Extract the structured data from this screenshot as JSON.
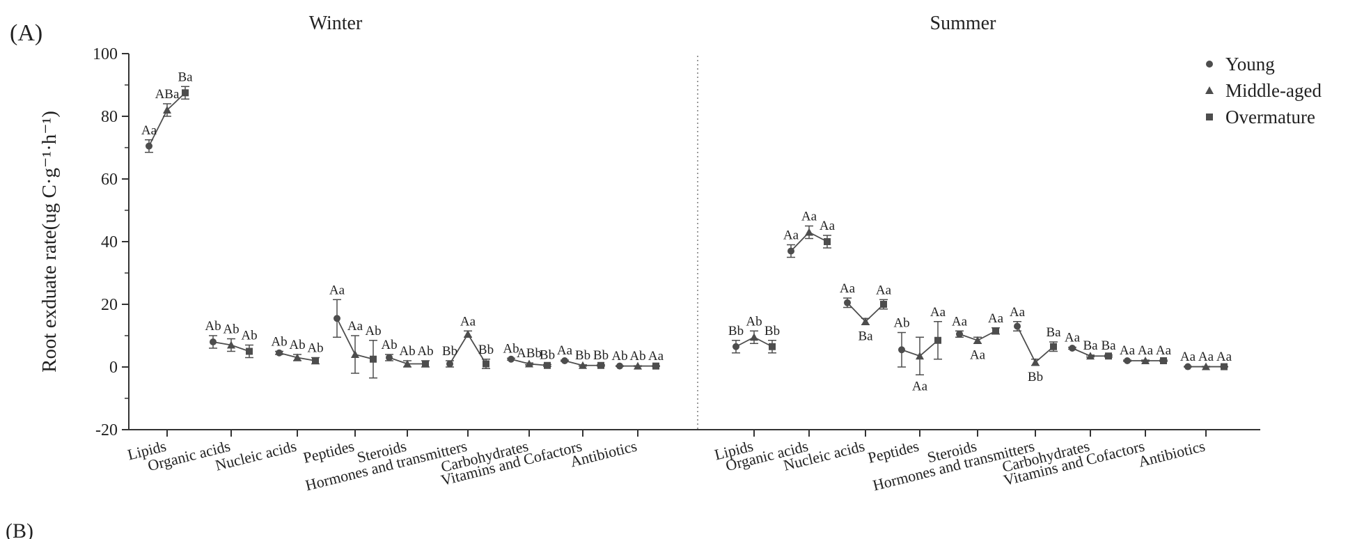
{
  "panel_label": "(A)",
  "panel_label_next": "(B)",
  "chart_data": {
    "type": "scatter",
    "ylabel": "Root exduate rate(ug C·g⁻¹·h⁻¹)",
    "ylim": [
      -20,
      100
    ],
    "yticks": [
      -20,
      0,
      20,
      40,
      60,
      80,
      100
    ],
    "categories": [
      "Lipids",
      "Organic acids",
      "Nucleic acids",
      "Peptides",
      "Steroids",
      "Hormones and transmitters",
      "Carbohydrates",
      "Vitamins and Cofactors",
      "Antibiotics"
    ],
    "legend": {
      "position": "top-right",
      "entries": [
        {
          "name": "Young",
          "marker": "circle"
        },
        {
          "name": "Middle-aged",
          "marker": "triangle"
        },
        {
          "name": "Overmature",
          "marker": "square"
        }
      ]
    },
    "line_color": "#4d4d4d",
    "divider": "dotted vertical line between seasons",
    "panels": [
      {
        "season": "Winter",
        "groups": [
          {
            "category": "Lipids",
            "values": [
              70.5,
              82.0,
              87.5
            ],
            "errors": [
              2.0,
              2.0,
              2.0
            ],
            "labels": [
              "Aa",
              "ABa",
              "Ba"
            ]
          },
          {
            "category": "Organic acids",
            "values": [
              8.0,
              7.0,
              5.0
            ],
            "errors": [
              2.0,
              2.0,
              2.0
            ],
            "labels": [
              "Ab",
              "Ab",
              "Ab"
            ]
          },
          {
            "category": "Nucleic acids",
            "values": [
              4.5,
              3.0,
              2.0
            ],
            "errors": [
              0.5,
              1.0,
              1.0
            ],
            "labels": [
              "Ab",
              "Ab",
              "Ab"
            ]
          },
          {
            "category": "Peptides",
            "values": [
              15.5,
              4.0,
              2.5
            ],
            "errors": [
              6.0,
              6.0,
              6.0
            ],
            "labels": [
              "Aa",
              "Aa",
              "Ab"
            ]
          },
          {
            "category": "Steroids",
            "values": [
              3.0,
              1.0,
              1.0
            ],
            "errors": [
              1.0,
              1.0,
              1.0
            ],
            "labels": [
              "Ab",
              "Ab",
              "Ab"
            ]
          },
          {
            "category": "Hormones and transmitters",
            "values": [
              1.0,
              10.5,
              1.0
            ],
            "errors": [
              1.0,
              1.0,
              1.5
            ],
            "labels": [
              "Bb",
              "Aa",
              "Bb"
            ]
          },
          {
            "category": "Carbohydrates",
            "values": [
              2.5,
              1.0,
              0.5
            ],
            "errors": [
              0.3,
              0.3,
              0.3
            ],
            "labels": [
              "Ab",
              "ABb",
              "Bb"
            ]
          },
          {
            "category": "Vitamins and Cofactors",
            "values": [
              2.0,
              0.5,
              0.5
            ],
            "errors": [
              0.2,
              0.2,
              0.2
            ],
            "labels": [
              "Aa",
              "Bb",
              "Bb"
            ]
          },
          {
            "category": "Antibiotics",
            "values": [
              0.3,
              0.3,
              0.3
            ],
            "errors": [
              0.1,
              0.1,
              0.1
            ],
            "labels": [
              "Ab",
              "Ab",
              "Aa"
            ]
          }
        ]
      },
      {
        "season": "Summer",
        "groups": [
          {
            "category": "Lipids",
            "values": [
              6.5,
              9.5,
              6.5
            ],
            "errors": [
              2.0,
              2.0,
              2.0
            ],
            "labels": [
              "Bb",
              "Ab",
              "Bb"
            ]
          },
          {
            "category": "Organic acids",
            "values": [
              37.0,
              43.0,
              40.0
            ],
            "errors": [
              2.0,
              2.0,
              2.0
            ],
            "labels": [
              "Aa",
              "Aa",
              "Aa"
            ]
          },
          {
            "category": "Nucleic acids",
            "values": [
              20.5,
              14.5,
              20.0
            ],
            "errors": [
              1.5,
              1.0,
              1.5
            ],
            "labels": [
              "Aa",
              "Ba",
              "Aa"
            ]
          },
          {
            "category": "Peptides",
            "values": [
              5.5,
              3.5,
              8.5
            ],
            "errors": [
              5.5,
              6.0,
              6.0
            ],
            "labels": [
              "Ab",
              "Aa",
              "Aa"
            ]
          },
          {
            "category": "Steroids",
            "values": [
              10.5,
              8.5,
              11.5
            ],
            "errors": [
              1.0,
              1.0,
              1.0
            ],
            "labels": [
              "Aa",
              "Aa",
              "Aa"
            ]
          },
          {
            "category": "Hormones and transmitters",
            "values": [
              13.0,
              1.5,
              6.5
            ],
            "errors": [
              1.5,
              1.0,
              1.5
            ],
            "labels": [
              "Aa",
              "Bb",
              "Ba"
            ]
          },
          {
            "category": "Carbohydrates",
            "values": [
              6.0,
              3.5,
              3.5
            ],
            "errors": [
              0.3,
              0.3,
              0.3
            ],
            "labels": [
              "Aa",
              "Ba",
              "Ba"
            ]
          },
          {
            "category": "Vitamins and Cofactors",
            "values": [
              2.0,
              2.0,
              2.0
            ],
            "errors": [
              0.2,
              0.2,
              0.2
            ],
            "labels": [
              "Aa",
              "Aa",
              "Aa"
            ]
          },
          {
            "category": "Antibiotics",
            "values": [
              0.1,
              0.1,
              0.1
            ],
            "errors": [
              0.1,
              0.1,
              0.1
            ],
            "labels": [
              "Aa",
              "Aa",
              "Aa"
            ]
          }
        ]
      }
    ]
  }
}
